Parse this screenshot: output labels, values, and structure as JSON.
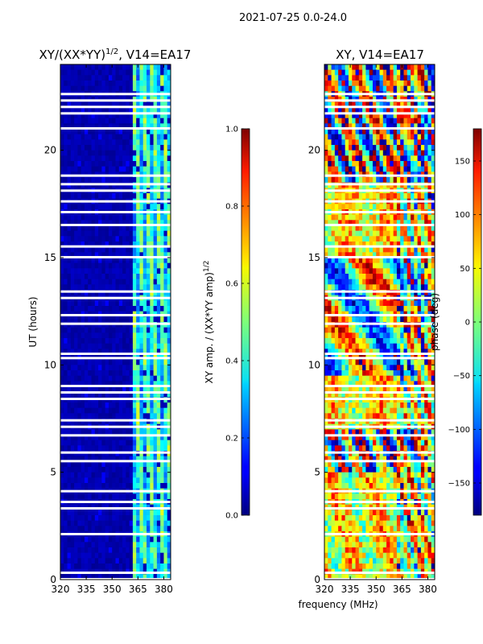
{
  "suptitle": "2021-07-25 0.0-24.0",
  "shared_xlabel": "frequency (MHz)",
  "chart_data": [
    {
      "type": "heatmap",
      "title_main": "XY/(XX*YY)",
      "title_exp": "1/2",
      "title_tail": ", V14=EA17",
      "ylabel": "UT (hours)",
      "xlim": [
        320,
        384
      ],
      "ylim": [
        0,
        24
      ],
      "xticks": [
        320,
        335,
        350,
        365,
        380
      ],
      "yticks": [
        0,
        5,
        10,
        15,
        20
      ],
      "colorbar": {
        "label_main": "XY amp. / (XX*YY amp)",
        "label_exp": "1/2",
        "range": [
          0.0,
          1.0
        ],
        "ticks": [
          "0.0",
          "0.2",
          "0.4",
          "0.6",
          "0.8",
          "1.0"
        ]
      },
      "flagged_bands_hours": [
        0.0,
        0.3,
        2.1,
        3.3,
        3.6,
        4.1,
        5.5,
        5.9,
        6.7,
        7.1,
        7.4,
        8.4,
        8.7,
        9.0,
        10.3,
        10.5,
        11.9,
        12.3,
        13.1,
        13.4,
        15.0,
        15.5,
        16.5,
        17.1,
        17.6,
        18.1,
        18.4,
        18.8,
        21.0,
        21.7,
        22.0,
        22.3,
        22.6
      ]
    },
    {
      "type": "heatmap",
      "title_main": "XY, V14=EA17",
      "ylabel": "",
      "xlim": [
        320,
        384
      ],
      "ylim": [
        0,
        24
      ],
      "xticks": [
        320,
        335,
        350,
        365,
        380
      ],
      "yticks": [
        0,
        5,
        10,
        15,
        20
      ],
      "colorbar": {
        "label_main": "phase (deg)",
        "range": [
          -180,
          180
        ],
        "ticks": [
          "−150",
          "−100",
          "−50",
          "0",
          "50",
          "100",
          "150"
        ]
      },
      "flagged_bands_hours": [
        0.0,
        0.3,
        2.1,
        3.3,
        3.6,
        4.1,
        5.5,
        5.9,
        6.7,
        7.1,
        7.4,
        8.4,
        8.7,
        9.0,
        10.3,
        10.5,
        11.9,
        12.3,
        13.1,
        13.4,
        15.0,
        15.5,
        16.5,
        17.1,
        17.6,
        18.1,
        18.4,
        18.8,
        21.0,
        21.7,
        22.0,
        22.3,
        22.6
      ]
    }
  ]
}
